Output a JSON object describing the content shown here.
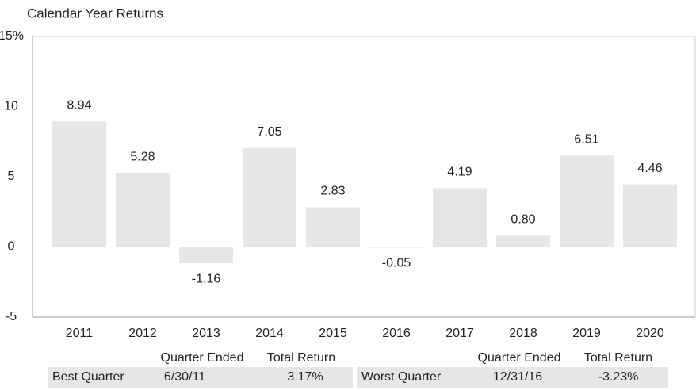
{
  "chart_data": {
    "type": "bar",
    "title": "Calendar Year Returns",
    "categories": [
      "2011",
      "2012",
      "2013",
      "2014",
      "2015",
      "2016",
      "2017",
      "2018",
      "2019",
      "2020"
    ],
    "values": [
      8.94,
      5.28,
      -1.16,
      7.05,
      2.83,
      -0.05,
      4.19,
      0.8,
      6.51,
      4.46
    ],
    "value_labels": [
      "8.94",
      "5.28",
      "-1.16",
      "7.05",
      "2.83",
      "-0.05",
      "4.19",
      "0.80",
      "6.51",
      "4.46"
    ],
    "color": "#e6e6e6",
    "ylim": [
      -5,
      15
    ],
    "yticks": [
      -5,
      0,
      5,
      10,
      {
        "value": 15,
        "label": "15%"
      }
    ]
  },
  "quarter_tables": [
    {
      "headers": [
        "Quarter Ended",
        "Total Return"
      ],
      "row": [
        "Best Quarter",
        "6/30/11",
        "3.17%"
      ]
    },
    {
      "headers": [
        "Quarter Ended",
        "Total Return"
      ],
      "row": [
        "Worst Quarter",
        "12/31/16",
        "-3.23%"
      ]
    }
  ]
}
